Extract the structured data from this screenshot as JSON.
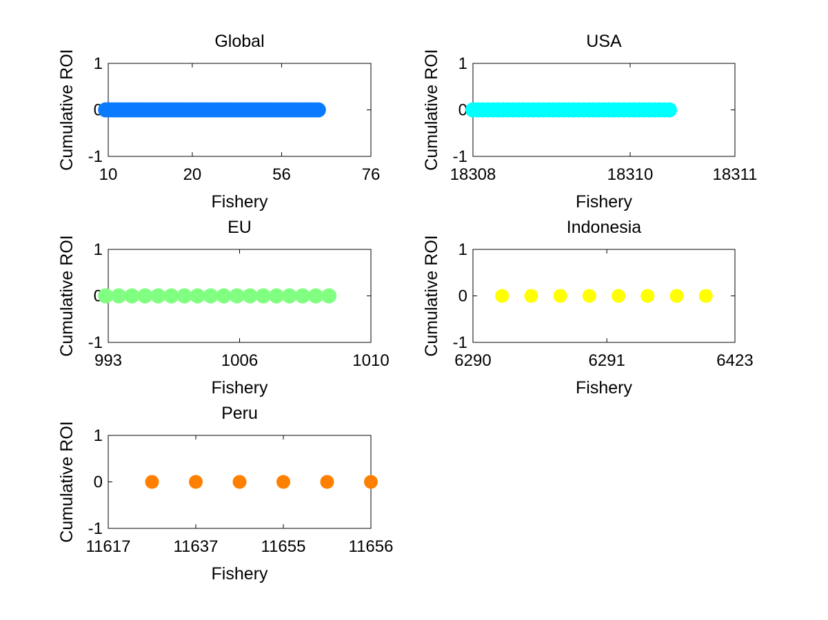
{
  "chart_data": [
    {
      "type": "scatter",
      "title": "Global",
      "xlabel": "Fishery",
      "ylabel": "Cumulative ROI",
      "xtick_labels": [
        "10",
        "20",
        "56",
        "76"
      ],
      "yticks": [
        -1,
        0,
        1
      ],
      "ylim": [
        -1,
        1
      ],
      "marker_color": "#0A7BFF",
      "series": [
        {
          "x_index_range": [
            1,
            64
          ],
          "y": 0,
          "style": "dense-line-of-markers"
        }
      ]
    },
    {
      "type": "scatter",
      "title": "USA",
      "xlabel": "Fishery",
      "ylabel": "Cumulative ROI",
      "xtick_labels": [
        "18308",
        "18310",
        "18311"
      ],
      "yticks": [
        -1,
        0,
        1
      ],
      "ylim": [
        -1,
        1
      ],
      "marker_color": "#00FFFF",
      "series": [
        {
          "x_index_range": [
            1,
            40
          ],
          "y": 0,
          "style": "dense-line-of-markers"
        }
      ]
    },
    {
      "type": "scatter",
      "title": "EU",
      "xlabel": "Fishery",
      "ylabel": "Cumulative ROI",
      "xtick_labels": [
        "993",
        "1006",
        "1010"
      ],
      "yticks": [
        -1,
        0,
        1
      ],
      "ylim": [
        -1,
        1
      ],
      "marker_color": "#80FF80",
      "series": [
        {
          "x_index_range": [
            1,
            18
          ],
          "y": 0,
          "style": "dense-line-of-markers"
        }
      ]
    },
    {
      "type": "scatter",
      "title": "Indonesia",
      "xlabel": "Fishery",
      "ylabel": "Cumulative ROI",
      "xtick_labels": [
        "6290",
        "6291",
        "6423"
      ],
      "yticks": [
        -1,
        0,
        1
      ],
      "ylim": [
        -1,
        1
      ],
      "marker_color": "#FFFF00",
      "series": [
        {
          "x": [
            1,
            2,
            3,
            4,
            5,
            6,
            7,
            8
          ],
          "y": [
            0,
            0,
            0,
            0,
            0,
            0,
            0,
            0
          ]
        }
      ]
    },
    {
      "type": "scatter",
      "title": "Peru",
      "xlabel": "Fishery",
      "ylabel": "Cumulative ROI",
      "xtick_labels": [
        "11617",
        "11637",
        "11655",
        "11656"
      ],
      "yticks": [
        -1,
        0,
        1
      ],
      "ylim": [
        -1,
        1
      ],
      "marker_color": "#FF8000",
      "series": [
        {
          "x": [
            1,
            2,
            3,
            4,
            5,
            6
          ],
          "y": [
            0,
            0,
            0,
            0,
            0,
            0
          ]
        }
      ]
    }
  ]
}
